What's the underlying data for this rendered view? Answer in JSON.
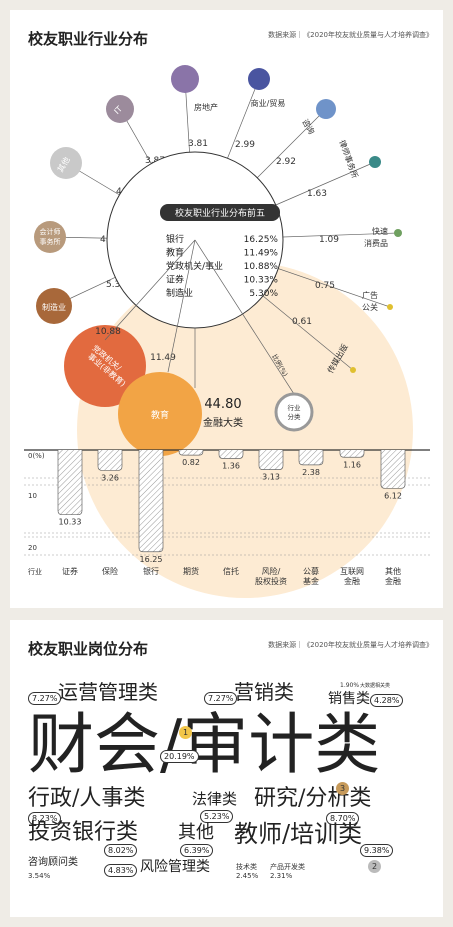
{
  "panel1": {
    "title": "校友职业行业分布",
    "source": "数据来源｜《2020年校友就业质量与人才培养调查》",
    "center_title": "校友职业行业分布前五",
    "top5": [
      {
        "name": "银行",
        "value": "16.25%"
      },
      {
        "name": "教育",
        "value": "11.49%"
      },
      {
        "name": "党政机关/事业",
        "value": "10.88%"
      },
      {
        "name": "证券",
        "value": "10.33%"
      },
      {
        "name": "制造业",
        "value": "5.30%"
      }
    ],
    "finance_total": "44.80",
    "finance_label": "金融大类",
    "ratio_label": "比例(%)",
    "legend_label": "行业分类",
    "axis_label": "行业",
    "colors": {
      "panel_bg": "#efece6",
      "finance_circle": "#fdebd3",
      "edu": "#f2a445",
      "gov": "#e26a3f",
      "bar_hatch": "#999999"
    }
  },
  "chart_data": [
    {
      "type": "scatter",
      "title": "校友职业行业分布",
      "subtitle": "数据来源｜《2020年校友就业质量与人才培养调查》",
      "industries": [
        {
          "name": "教育",
          "value": 11.49,
          "color": "#f2a445",
          "size": "large"
        },
        {
          "name": "党政机关/事业(非教育)",
          "value": 10.88,
          "color": "#e26a3f",
          "size": "large"
        },
        {
          "name": "制造业",
          "value": 5.3,
          "color": "#a8683a"
        },
        {
          "name": "会计师事务所",
          "value": 4.96,
          "color": "#b89a7c"
        },
        {
          "name": "其他",
          "value": 4.89,
          "color": "#c9c9c9"
        },
        {
          "name": "IT",
          "value": 3.87,
          "color": "#9c8b9c"
        },
        {
          "name": "房地产",
          "value": 3.81,
          "color": "#8a74a8"
        },
        {
          "name": "商业/贸易",
          "value": 2.99,
          "color": "#4a55a0"
        },
        {
          "name": "咨询",
          "value": 2.92,
          "color": "#6f93c9"
        },
        {
          "name": "律师事务所",
          "value": 1.63,
          "color": "#3a8a88"
        },
        {
          "name": "快速消费品",
          "value": 1.09,
          "color": "#6fa060"
        },
        {
          "name": "广告公关",
          "value": 0.75,
          "color": "#e0c030"
        },
        {
          "name": "传媒出版",
          "value": 0.61,
          "color": "#e0c030"
        }
      ]
    },
    {
      "type": "bar",
      "categories": [
        "证券",
        "保险",
        "银行",
        "期货",
        "信托",
        "风险/股权投资",
        "公募基金",
        "互联网金融",
        "其他金融"
      ],
      "values": [
        10.33,
        3.26,
        16.25,
        0.82,
        1.36,
        3.13,
        2.38,
        1.16,
        6.12
      ],
      "ylabel": "比例(%)",
      "xlabel": "行业",
      "ylim": [
        0,
        20
      ],
      "yticks": [
        "0(%)",
        "10",
        "20"
      ],
      "inverted": true
    },
    {
      "type": "bar",
      "title": "校友职业岗位分布",
      "subtitle": "数据来源｜《2020年校友就业质量与人才培养调查》",
      "categories": [
        "财会/审计类",
        "销售类",
        "研究/分析类",
        "行政/人事类",
        "运营管理类",
        "营销类",
        "投资银行类",
        "教师/培训类",
        "其他",
        "法律类",
        "风险管理类",
        "咨询顾问类",
        "技术类",
        "产品开发类",
        "大数据相关类"
      ],
      "values": [
        20.19,
        4.28,
        8.7,
        8.23,
        7.27,
        7.27,
        8.02,
        9.38,
        6.39,
        5.23,
        4.83,
        3.54,
        2.45,
        2.31,
        1.9
      ],
      "labels": [
        "20.19%",
        "4.28%",
        "8.70%",
        "8.23%",
        "7.27%",
        "7.27%",
        "8.02%",
        "9.38%",
        "6.39%",
        "5.23%",
        "4.83%",
        "3.54%",
        "2.45%",
        "2.31%",
        "1.90%"
      ],
      "ranks": {
        "财会/审计类": "1",
        "教师/培训类": "2",
        "研究/分析类": "3"
      }
    }
  ]
}
